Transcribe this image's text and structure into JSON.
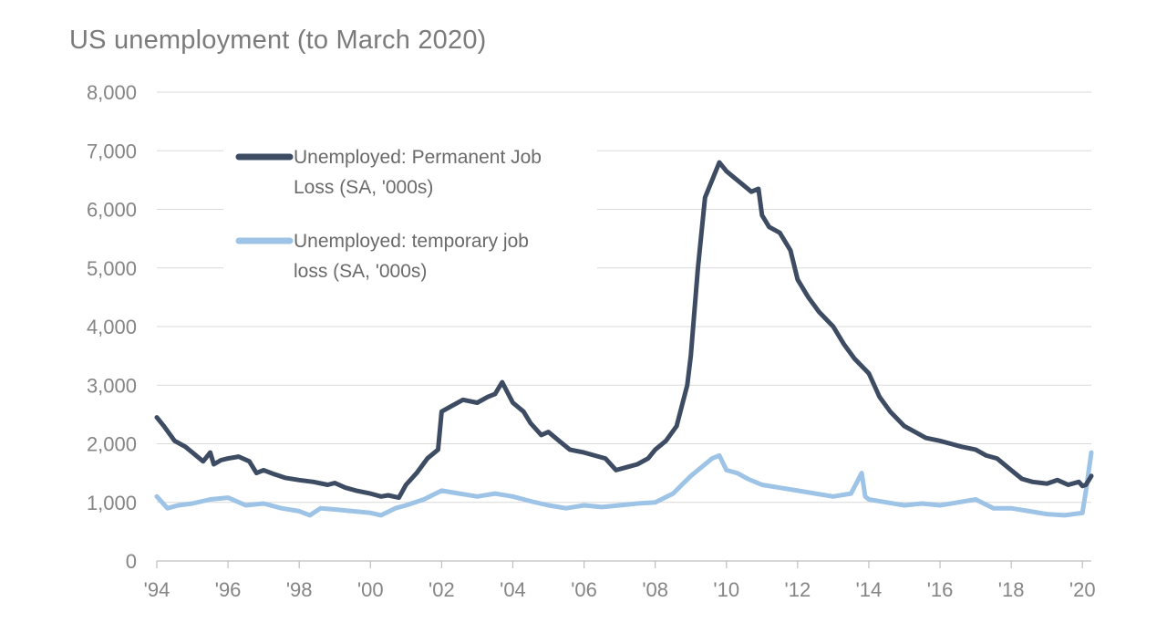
{
  "chart_data": {
    "type": "line",
    "title": "US unemployment (to March 2020)",
    "xlabel": "",
    "ylabel": "",
    "xlim": [
      1994.0,
      2020.25
    ],
    "ylim": [
      0,
      8000
    ],
    "y_ticks": [
      0,
      1000,
      2000,
      3000,
      4000,
      5000,
      6000,
      7000,
      8000
    ],
    "y_tick_labels": [
      "0",
      "1,000",
      "2,000",
      "3,000",
      "4,000",
      "5,000",
      "6,000",
      "7,000",
      "8,000"
    ],
    "x_ticks": [
      1994,
      1996,
      1998,
      2000,
      2002,
      2004,
      2006,
      2008,
      2010,
      2012,
      2014,
      2016,
      2018,
      2020
    ],
    "x_tick_labels": [
      "'94",
      "'96",
      "'98",
      "'00",
      "'02",
      "'04",
      "'06",
      "'08",
      "'10",
      "'12",
      "'14",
      "'16",
      "'18",
      "'20"
    ],
    "grid": true,
    "legend_position": "top-left",
    "series": [
      {
        "name": "Unemployed: Permanent Job Loss (SA, '000s)",
        "legend_lines": [
          "Unemployed: Permanent Job",
          "Loss (SA, '000s)"
        ],
        "color": "#3d4c63",
        "x": [
          1994.0,
          1994.2,
          1994.5,
          1994.8,
          1995.0,
          1995.3,
          1995.5,
          1995.6,
          1995.8,
          1996.0,
          1996.3,
          1996.6,
          1996.8,
          1997.0,
          1997.3,
          1997.6,
          1998.0,
          1998.4,
          1998.8,
          1999.0,
          1999.3,
          1999.6,
          2000.0,
          2000.3,
          2000.5,
          2000.8,
          2001.0,
          2001.3,
          2001.6,
          2001.9,
          2002.0,
          2002.3,
          2002.6,
          2003.0,
          2003.3,
          2003.5,
          2003.7,
          2004.0,
          2004.3,
          2004.5,
          2004.8,
          2005.0,
          2005.3,
          2005.6,
          2006.0,
          2006.3,
          2006.6,
          2006.9,
          2007.2,
          2007.5,
          2007.8,
          2008.0,
          2008.3,
          2008.6,
          2008.9,
          2009.0,
          2009.2,
          2009.4,
          2009.6,
          2009.8,
          2010.0,
          2010.2,
          2010.4,
          2010.7,
          2010.9,
          2011.0,
          2011.2,
          2011.5,
          2011.8,
          2012.0,
          2012.3,
          2012.6,
          2013.0,
          2013.3,
          2013.6,
          2014.0,
          2014.3,
          2014.6,
          2015.0,
          2015.3,
          2015.6,
          2016.0,
          2016.3,
          2016.6,
          2017.0,
          2017.3,
          2017.6,
          2018.0,
          2018.3,
          2018.6,
          2019.0,
          2019.3,
          2019.6,
          2019.9,
          2020.0,
          2020.1,
          2020.25
        ],
        "values": [
          2450,
          2300,
          2050,
          1950,
          1850,
          1700,
          1850,
          1650,
          1720,
          1750,
          1780,
          1700,
          1500,
          1550,
          1480,
          1420,
          1380,
          1350,
          1300,
          1330,
          1250,
          1200,
          1150,
          1100,
          1120,
          1080,
          1300,
          1500,
          1750,
          1900,
          2550,
          2650,
          2750,
          2700,
          2800,
          2850,
          3050,
          2700,
          2550,
          2350,
          2150,
          2200,
          2050,
          1900,
          1850,
          1800,
          1750,
          1550,
          1600,
          1650,
          1750,
          1900,
          2050,
          2300,
          3000,
          3500,
          5000,
          6200,
          6500,
          6800,
          6650,
          6550,
          6450,
          6300,
          6350,
          5900,
          5700,
          5600,
          5300,
          4800,
          4500,
          4250,
          4000,
          3700,
          3450,
          3200,
          2800,
          2550,
          2300,
          2200,
          2100,
          2050,
          2000,
          1950,
          1900,
          1800,
          1750,
          1550,
          1400,
          1350,
          1320,
          1380,
          1300,
          1350,
          1280,
          1300,
          1450
        ]
      },
      {
        "name": "Unemployed: temporary job loss (SA, '000s)",
        "legend_lines": [
          "Unemployed: temporary job",
          "loss (SA, '000s)"
        ],
        "color": "#9dc3e6",
        "x": [
          1994.0,
          1994.3,
          1994.6,
          1995.0,
          1995.5,
          1996.0,
          1996.5,
          1997.0,
          1997.5,
          1998.0,
          1998.3,
          1998.6,
          1999.0,
          1999.5,
          2000.0,
          2000.3,
          2000.7,
          2001.0,
          2001.5,
          2002.0,
          2002.5,
          2003.0,
          2003.5,
          2004.0,
          2004.5,
          2005.0,
          2005.5,
          2006.0,
          2006.5,
          2007.0,
          2007.5,
          2008.0,
          2008.5,
          2009.0,
          2009.3,
          2009.6,
          2009.8,
          2010.0,
          2010.3,
          2010.6,
          2011.0,
          2011.5,
          2012.0,
          2012.5,
          2013.0,
          2013.5,
          2013.8,
          2013.9,
          2014.0,
          2014.5,
          2015.0,
          2015.5,
          2016.0,
          2016.5,
          2017.0,
          2017.5,
          2018.0,
          2018.5,
          2019.0,
          2019.5,
          2020.0,
          2020.1,
          2020.25
        ],
        "values": [
          1100,
          900,
          950,
          980,
          1050,
          1080,
          950,
          980,
          900,
          850,
          780,
          900,
          880,
          850,
          820,
          780,
          900,
          950,
          1050,
          1200,
          1150,
          1100,
          1150,
          1100,
          1020,
          950,
          900,
          950,
          920,
          950,
          980,
          1000,
          1150,
          1450,
          1600,
          1750,
          1800,
          1550,
          1500,
          1400,
          1300,
          1250,
          1200,
          1150,
          1100,
          1150,
          1500,
          1100,
          1050,
          1000,
          950,
          980,
          950,
          1000,
          1050,
          900,
          900,
          850,
          800,
          780,
          820,
          1200,
          1850
        ]
      }
    ]
  }
}
